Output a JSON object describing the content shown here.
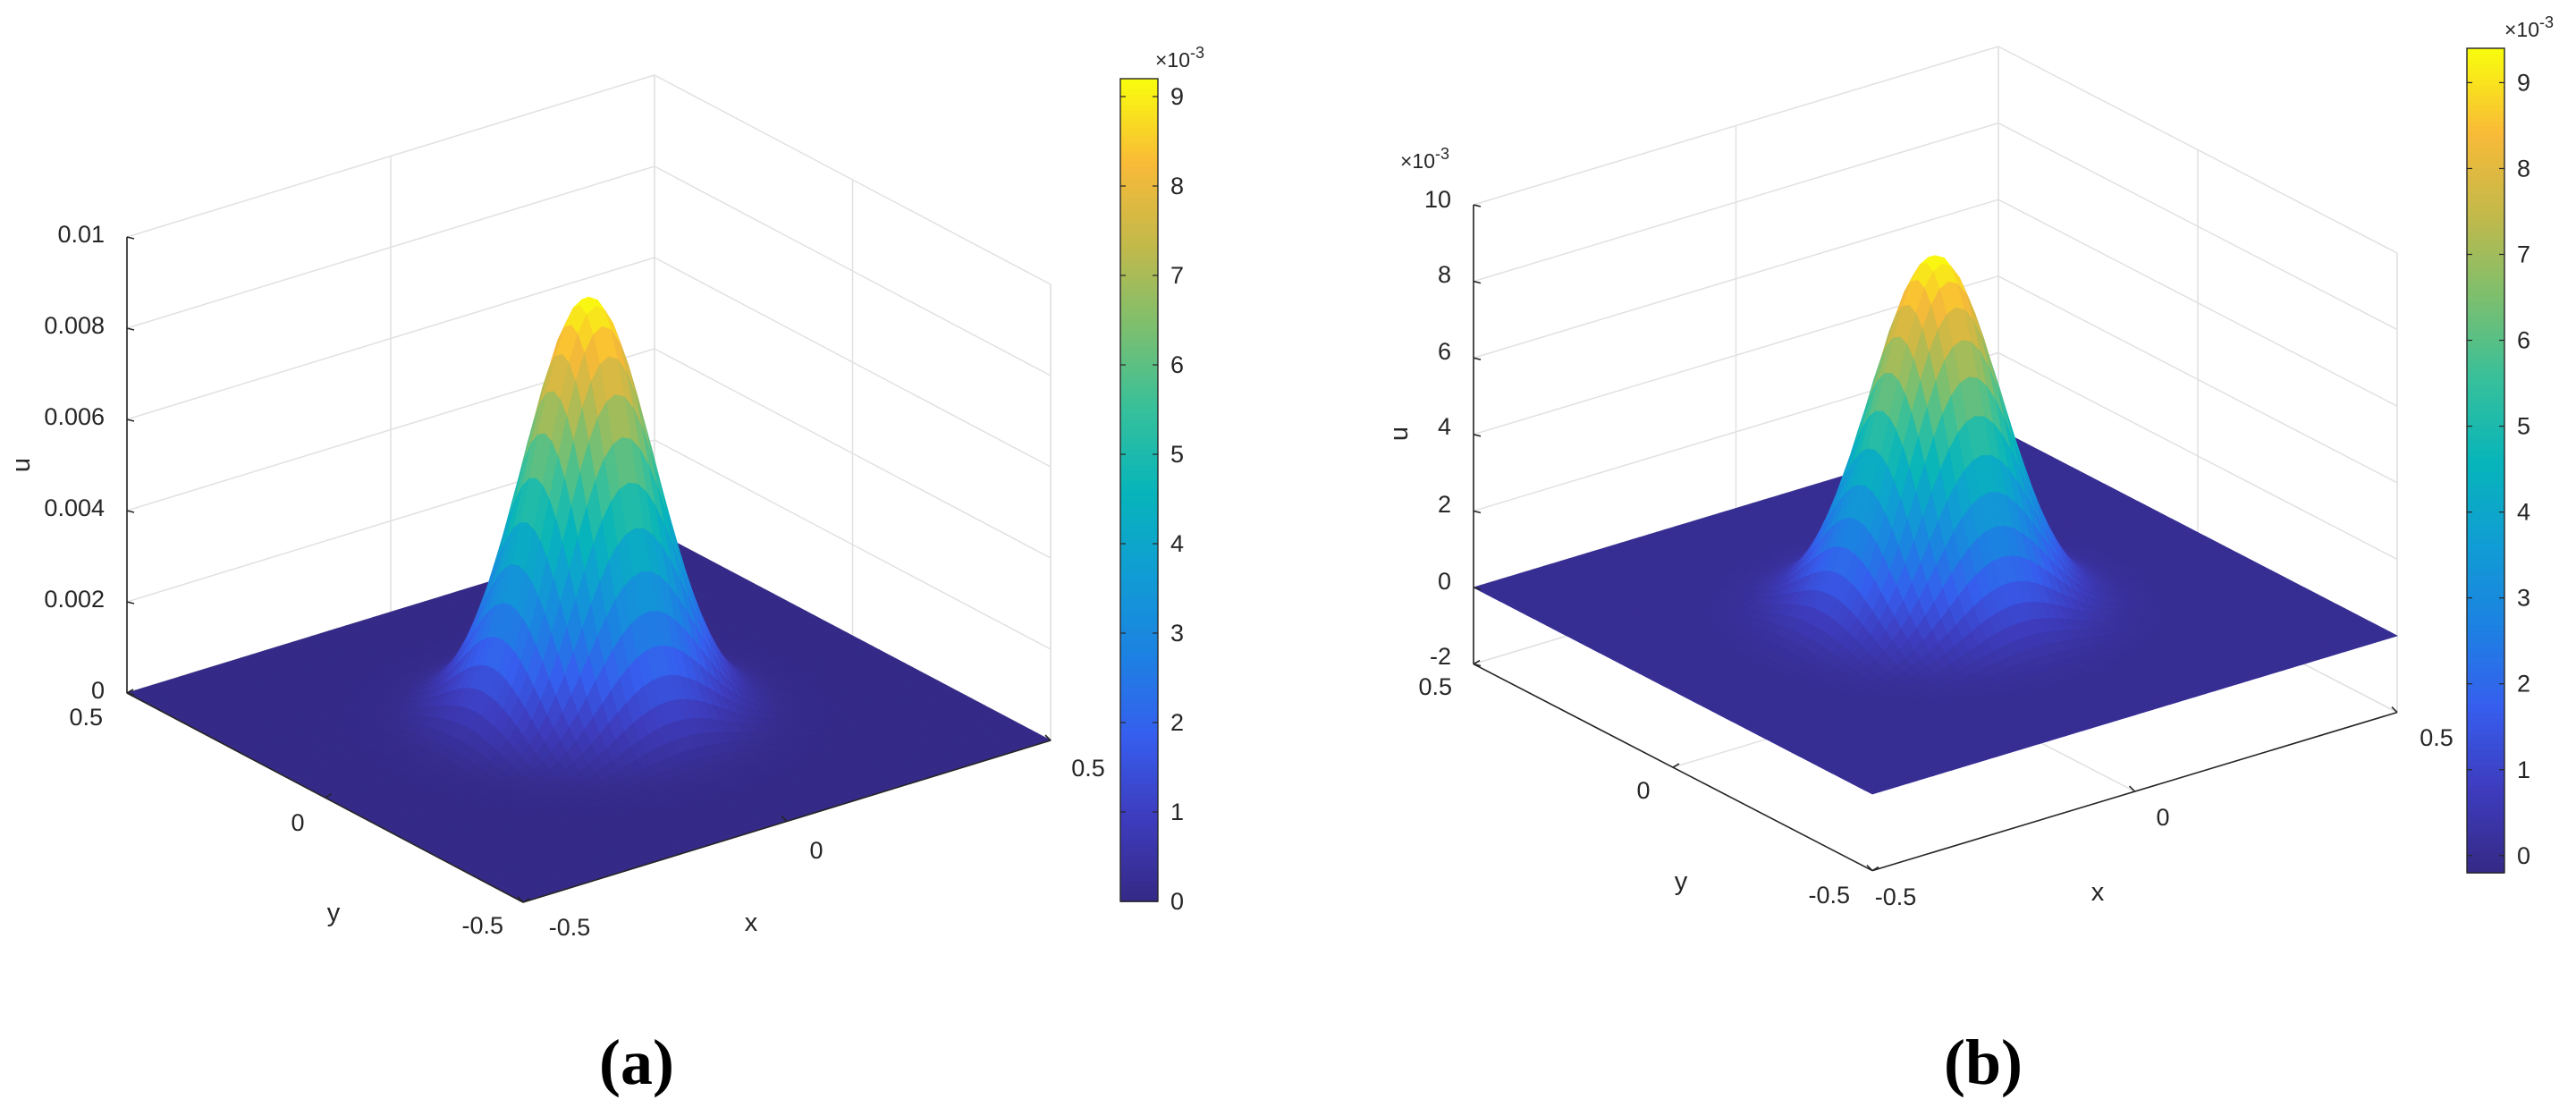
{
  "chart_data": [
    {
      "type": "surface",
      "caption": "(a)",
      "xlabel": "x",
      "ylabel": "y",
      "zlabel": "u",
      "xlim": [
        -0.5,
        0.5
      ],
      "ylim": [
        -0.5,
        0.5
      ],
      "zlim": [
        0,
        0.01
      ],
      "x_ticks": [
        "-0.5",
        "0",
        "0.5"
      ],
      "y_ticks": [
        "-0.5",
        "0",
        "0.5"
      ],
      "z_ticks": [
        "0",
        "0.002",
        "0.004",
        "0.006",
        "0.008",
        "0.01"
      ],
      "z_multiplier": "",
      "peak": 0.0092,
      "gaussian_sigma": 0.1,
      "grid": true,
      "colorbar": {
        "exponent_label": "×10",
        "exponent_power": "-3",
        "ticks": [
          "0",
          "1",
          "2",
          "3",
          "4",
          "5",
          "6",
          "7",
          "8",
          "9"
        ],
        "range": [
          0,
          9.2
        ]
      },
      "colormap": "parula"
    },
    {
      "type": "surface",
      "caption": "(b)",
      "xlabel": "x",
      "ylabel": "y",
      "zlabel": "u",
      "xlim": [
        -0.5,
        0.5
      ],
      "ylim": [
        -0.5,
        0.5
      ],
      "zlim": [
        -2,
        10
      ],
      "x_ticks": [
        "-0.5",
        "0",
        "0.5"
      ],
      "y_ticks": [
        "-0.5",
        "0",
        "0.5"
      ],
      "z_ticks": [
        "-2",
        "0",
        "2",
        "4",
        "6",
        "8",
        "10"
      ],
      "z_multiplier_label": "×10",
      "z_multiplier_power": "-3",
      "peak": 9.3,
      "gaussian_sigma": 0.1,
      "grid": true,
      "colorbar": {
        "exponent_label": "×10",
        "exponent_power": "-3",
        "ticks": [
          "0",
          "1",
          "2",
          "3",
          "4",
          "5",
          "6",
          "7",
          "8",
          "9"
        ],
        "range": [
          -0.2,
          9.4
        ]
      },
      "colormap": "parula"
    }
  ]
}
